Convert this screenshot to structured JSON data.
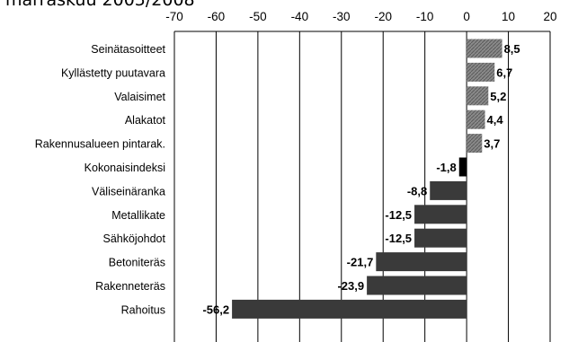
{
  "chart_data": {
    "type": "bar",
    "orientation": "horizontal",
    "title": "marraskuu 2005/2008",
    "xlim": [
      -70,
      20
    ],
    "xticks": [
      "-70",
      "-60",
      "-50",
      "-40",
      "-30",
      "-20",
      "-10",
      "0",
      "10",
      "20"
    ],
    "grid": true,
    "categories": [
      "Seinätasoitteet",
      "Kyllästetty puutavara",
      "Valaisimet",
      "Alakatot",
      "Rakennusalueen pintarak.",
      "Kokonaisindeksi",
      "Väliseinäranka",
      "Metallikate",
      "Sähköjohdot",
      "Betoniteräs",
      "Rakenneteräs",
      "Rahoitus"
    ],
    "values": [
      8.5,
      6.7,
      5.2,
      4.4,
      3.7,
      -1.8,
      -8.8,
      -12.5,
      -12.5,
      -21.7,
      -23.9,
      -56.2
    ],
    "labels": [
      "8,5",
      "6,7",
      "5,2",
      "4,4",
      "3,7",
      "-1,8",
      "-8,8",
      "-12,5",
      "-12,5",
      "-21,7",
      "-23,9",
      "-56,2"
    ],
    "highlight_category": "Kokonaisindeksi",
    "colors": {
      "bar": "#3a3a3a",
      "bar_positive": "#8a8a8a",
      "highlight": "#000000",
      "grid": "#000000"
    }
  }
}
